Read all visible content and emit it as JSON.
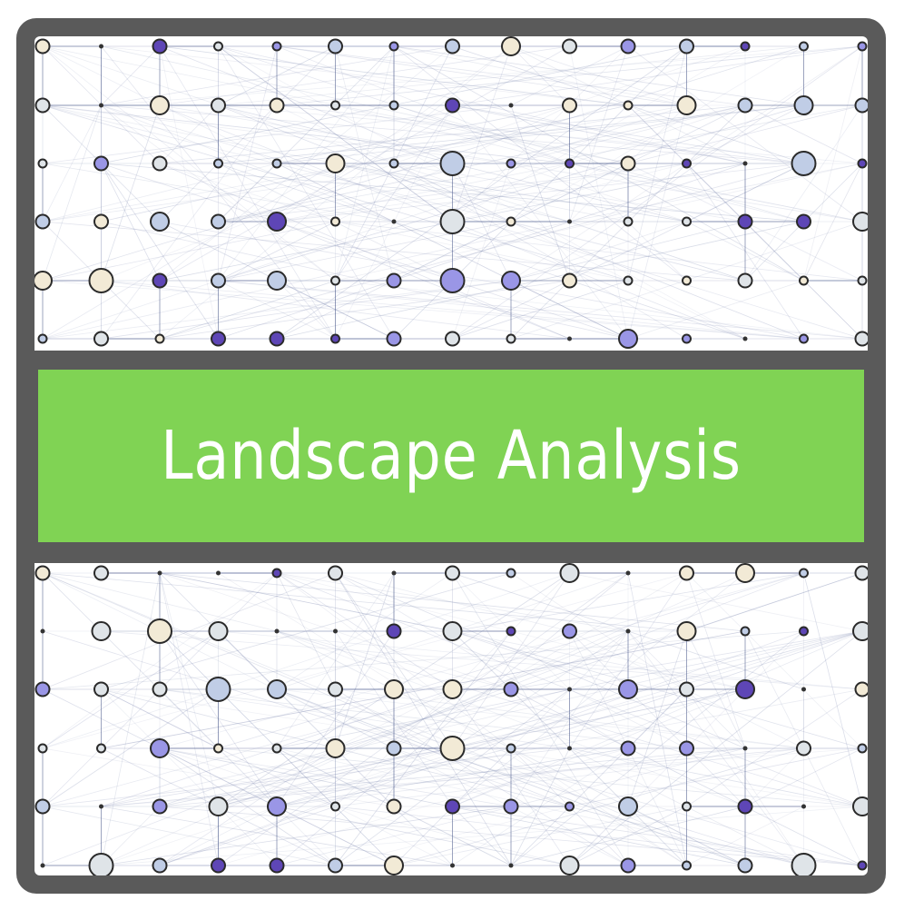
{
  "banner": {
    "title": "Landscape Analysis"
  },
  "colors": {
    "frame": "#5a5a5a",
    "banner": "#80d354",
    "banner_text": "#ffffff",
    "node_fills": [
      "#f2ead6",
      "#c0cde6",
      "#9a96e6",
      "#5e46b6",
      "#dfe4e8"
    ],
    "node_stroke": "#2a2a2a",
    "edge": "#8a94b8"
  },
  "icons": {
    "decoration": "network-graph-pattern"
  }
}
